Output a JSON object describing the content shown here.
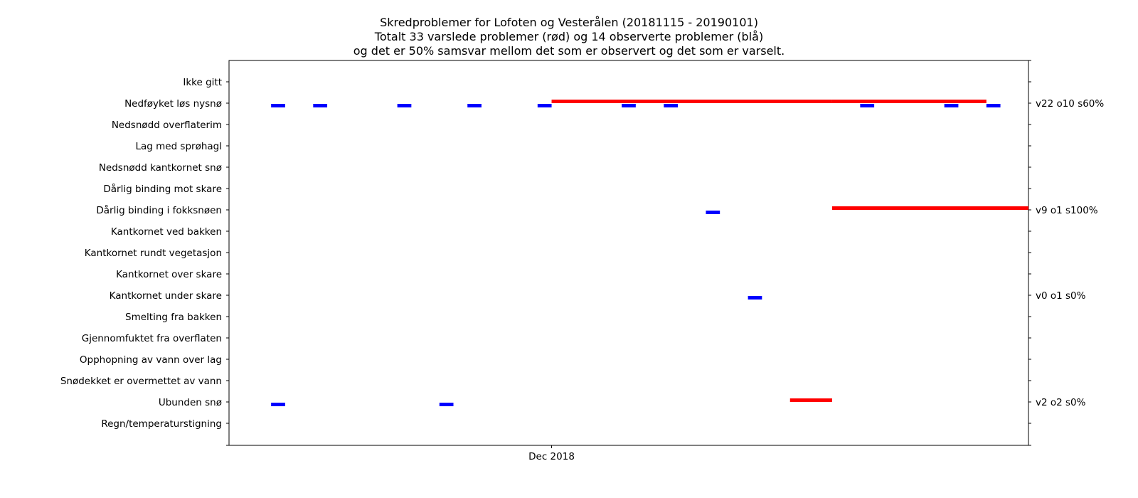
{
  "chart_data": {
    "type": "timeline",
    "title": [
      "Skredproblemer for Lofoten og Vesterålen (20181115 - 20190101)",
      "Totalt 33 varslede problemer (rød) og 14 observerte problemer (blå)",
      "og det er 50% samsvar mellom det som er observert og det som er varselt."
    ],
    "x_range": [
      "2018-11-08",
      "2019-01-04"
    ],
    "x_ticks": [
      {
        "date": "2018-12-01",
        "label": "Dec 2018"
      }
    ],
    "categories": [
      "Ikke gitt",
      "Nedføyket løs nysnø",
      "Nedsnødd overflaterim",
      "Lag med sprøhagl",
      "Nedsnødd kantkornet snø",
      "Dårlig binding mot skare",
      "Dårlig binding i fokksnøen",
      "Kantkornet ved bakken",
      "Kantkornet rundt vegetasjon",
      "Kantkornet over skare",
      "Kantkornet under skare",
      "Smelting fra bakken",
      "Gjennomfuktet fra overflaten",
      "Opphopning av vann over lag",
      "Snødekket er overmettet av vann",
      "Ubunden snø",
      "Regn/temperaturstigning "
    ],
    "right_labels": [
      {
        "category": "Nedføyket løs nysnø",
        "label": "v22 o10 s60%"
      },
      {
        "category": "Dårlig binding i fokksnøen",
        "label": "v9 o1 s100%"
      },
      {
        "category": "Kantkornet under skare",
        "label": "v0 o1 s0%"
      },
      {
        "category": "Ubunden snø",
        "label": "v2 o2 s0%"
      }
    ],
    "series": [
      {
        "key": "forecast",
        "color": "#ff0000",
        "segments": [
          {
            "category": "Nedføyket løs nysnø",
            "start": "2018-12-01",
            "end": "2018-12-21"
          },
          {
            "category": "Nedføyket løs nysnø",
            "start": "2019-12-21",
            "end": "2019-01-01",
            "start_fix": "2018-12-21"
          },
          {
            "category": "Dårlig binding i fokksnøen",
            "start": "2018-12-21",
            "end": "2019-01-04"
          },
          {
            "category": "Ubunden snø",
            "start": "2018-12-18",
            "end": "2018-12-21"
          }
        ]
      },
      {
        "key": "observed",
        "color": "#0000ff",
        "segments": [
          {
            "category": "Nedføyket løs nysnø",
            "start": "2018-11-11",
            "end": "2018-11-12"
          },
          {
            "category": "Nedføyket løs nysnø",
            "start": "2018-11-14",
            "end": "2018-11-15"
          },
          {
            "category": "Nedføyket løs nysnø",
            "start": "2018-11-20",
            "end": "2018-11-21"
          },
          {
            "category": "Nedføyket løs nysnø",
            "start": "2018-11-25",
            "end": "2018-11-26"
          },
          {
            "category": "Nedføyket løs nysnø",
            "start": "2018-11-30",
            "end": "2018-12-01"
          },
          {
            "category": "Nedføyket løs nysnø",
            "start": "2018-12-06",
            "end": "2018-12-07"
          },
          {
            "category": "Nedføyket løs nysnø",
            "start": "2018-12-09",
            "end": "2018-12-10"
          },
          {
            "category": "Nedføyket løs nysnø",
            "start": "2018-12-23",
            "end": "2018-12-24"
          },
          {
            "category": "Nedføyket løs nysnø",
            "start": "2018-12-29",
            "end": "2018-12-30"
          },
          {
            "category": "Nedføyket løs nysnø",
            "start": "2019-01-01",
            "end": "2019-01-02"
          },
          {
            "category": "Dårlig binding i fokksnøen",
            "start": "2018-12-12",
            "end": "2018-12-13"
          },
          {
            "category": "Kantkornet under skare",
            "start": "2018-12-15",
            "end": "2018-12-16"
          },
          {
            "category": "Ubunden snø",
            "start": "2018-11-11",
            "end": "2018-11-12"
          },
          {
            "category": "Ubunden snø",
            "start": "2018-11-23",
            "end": "2018-11-24"
          }
        ]
      }
    ]
  }
}
